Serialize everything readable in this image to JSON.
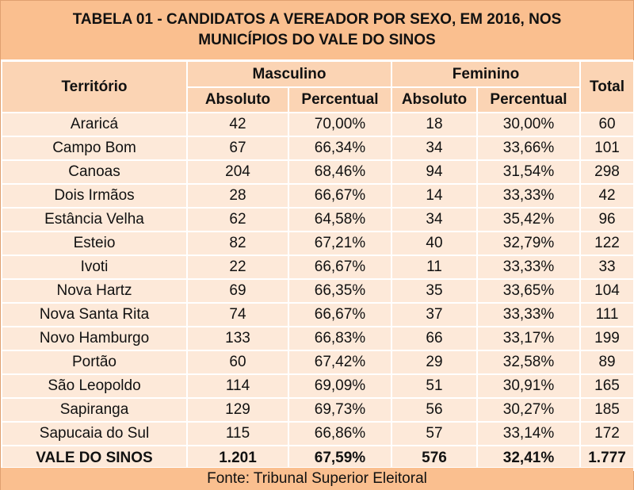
{
  "title": {
    "line1": "TABELA 01 - CANDIDATOS A VEREADOR POR SEXO, EM 2016, NOS",
    "line2": "MUNICÍPIOS DO VALE DO SINOS"
  },
  "headers": {
    "territorio": "Território",
    "masculino": "Masculino",
    "feminino": "Feminino",
    "total": "Total",
    "absoluto": "Absoluto",
    "percentual": "Percentual"
  },
  "rows": [
    [
      "Araricá",
      "42",
      "70,00%",
      "18",
      "30,00%",
      "60"
    ],
    [
      "Campo Bom",
      "67",
      "66,34%",
      "34",
      "33,66%",
      "101"
    ],
    [
      "Canoas",
      "204",
      "68,46%",
      "94",
      "31,54%",
      "298"
    ],
    [
      "Dois Irmãos",
      "28",
      "66,67%",
      "14",
      "33,33%",
      "42"
    ],
    [
      "Estância Velha",
      "62",
      "64,58%",
      "34",
      "35,42%",
      "96"
    ],
    [
      "Esteio",
      "82",
      "67,21%",
      "40",
      "32,79%",
      "122"
    ],
    [
      "Ivoti",
      "22",
      "66,67%",
      "11",
      "33,33%",
      "33"
    ],
    [
      "Nova Hartz",
      "69",
      "66,35%",
      "35",
      "33,65%",
      "104"
    ],
    [
      "Nova Santa Rita",
      "74",
      "66,67%",
      "37",
      "33,33%",
      "111"
    ],
    [
      "Novo Hamburgo",
      "133",
      "66,83%",
      "66",
      "33,17%",
      "199"
    ],
    [
      "Portão",
      "60",
      "67,42%",
      "29",
      "32,58%",
      "89"
    ],
    [
      "São Leopoldo",
      "114",
      "69,09%",
      "51",
      "30,91%",
      "165"
    ],
    [
      "Sapiranga",
      "129",
      "69,73%",
      "56",
      "30,27%",
      "185"
    ],
    [
      "Sapucaia do Sul",
      "115",
      "66,86%",
      "57",
      "33,14%",
      "172"
    ]
  ],
  "total_row": [
    "VALE DO SINOS",
    "1.201",
    "67,59%",
    "576",
    "32,41%",
    "1.777"
  ],
  "source": "Fonte: Tribunal Superior Eleitoral",
  "colors": {
    "header_dark": "#fabf8f",
    "header_light": "#fbd4b4",
    "body": "#fde9d9",
    "grid": "#ffffff"
  }
}
